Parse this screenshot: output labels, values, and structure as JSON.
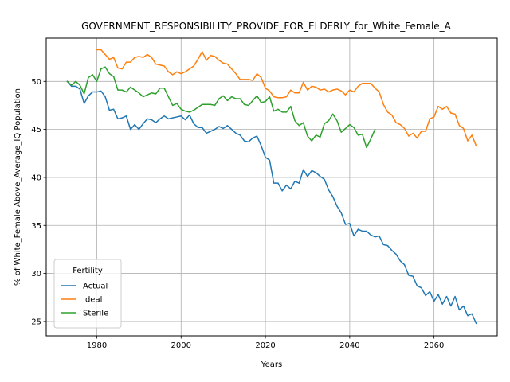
{
  "chart_data": {
    "type": "line",
    "title": "GOVERNMENT_RESPONSIBILITY_PROVIDE_FOR_ELDERLY_for_White_Female_A",
    "xlabel": "Years",
    "ylabel": "% of White_Female Above_Average_IQ Population",
    "xlim": [
      1968,
      2075
    ],
    "ylim": [
      23.5,
      54.5
    ],
    "xticks": [
      1980,
      2000,
      2020,
      2040,
      2060
    ],
    "yticks": [
      25,
      30,
      35,
      40,
      45,
      50
    ],
    "grid": true,
    "legend": {
      "title": "Fertility",
      "position": "lower left"
    },
    "series": [
      {
        "name": "Actual",
        "color": "#1f77b4",
        "x": [
          1973,
          1974,
          1975,
          1976,
          1977,
          1978,
          1979,
          1980,
          1981,
          1982,
          1983,
          1984,
          1985,
          1986,
          1987,
          1988,
          1989,
          1990,
          1991,
          1992,
          1993,
          1994,
          1995,
          1996,
          1997,
          1998,
          1999,
          2000,
          2001,
          2002,
          2003,
          2004,
          2005,
          2006,
          2007,
          2008,
          2009,
          2010,
          2011,
          2012,
          2013,
          2014,
          2015,
          2016,
          2017,
          2018,
          2019,
          2020,
          2021,
          2022,
          2023,
          2024,
          2025,
          2026,
          2027,
          2028,
          2029,
          2030,
          2031,
          2032,
          2033,
          2034,
          2035,
          2036,
          2037,
          2038,
          2039,
          2040,
          2041,
          2042,
          2043,
          2044,
          2045,
          2046,
          2047,
          2048,
          2049,
          2050,
          2051,
          2052,
          2053,
          2054,
          2055,
          2056,
          2057,
          2058,
          2059,
          2060,
          2061,
          2062,
          2063,
          2064,
          2065,
          2066,
          2067,
          2068,
          2069,
          2070
        ],
        "y": [
          50.0,
          49.5,
          49.5,
          49.2,
          47.7,
          48.5,
          48.9,
          48.9,
          49.0,
          48.4,
          47.0,
          47.1,
          46.1,
          46.2,
          46.4,
          45.0,
          45.5,
          45.0,
          45.6,
          46.1,
          46.0,
          45.7,
          46.1,
          46.4,
          46.1,
          46.2,
          46.3,
          46.4,
          46.0,
          46.5,
          45.6,
          45.2,
          45.2,
          44.6,
          44.8,
          45.0,
          45.3,
          45.1,
          45.4,
          45.0,
          44.6,
          44.4,
          43.8,
          43.7,
          44.1,
          44.3,
          43.3,
          42.1,
          41.8,
          39.4,
          39.4,
          38.6,
          39.2,
          38.8,
          39.6,
          39.4,
          40.8,
          40.1,
          40.7,
          40.5,
          40.1,
          39.8,
          38.7,
          38.0,
          37.0,
          36.3,
          35.1,
          35.2,
          33.9,
          34.6,
          34.4,
          34.4,
          34.0,
          33.8,
          33.9,
          33.0,
          32.9,
          32.4,
          32.0,
          31.3,
          30.9,
          29.8,
          29.7,
          28.7,
          28.5,
          27.7,
          28.1,
          27.1,
          27.8,
          26.8,
          27.6,
          26.6,
          27.6,
          26.2,
          26.6,
          25.6,
          25.8,
          24.8
        ]
      },
      {
        "name": "Ideal",
        "color": "#ff7f0e",
        "x": [
          1980,
          1981,
          1982,
          1983,
          1984,
          1985,
          1986,
          1987,
          1988,
          1989,
          1990,
          1991,
          1992,
          1993,
          1994,
          1995,
          1996,
          1997,
          1998,
          1999,
          2000,
          2001,
          2002,
          2003,
          2004,
          2005,
          2006,
          2007,
          2008,
          2009,
          2010,
          2011,
          2012,
          2013,
          2014,
          2015,
          2016,
          2017,
          2018,
          2019,
          2020,
          2021,
          2022,
          2023,
          2024,
          2025,
          2026,
          2027,
          2028,
          2029,
          2030,
          2031,
          2032,
          2033,
          2034,
          2035,
          2036,
          2037,
          2038,
          2039,
          2040,
          2041,
          2042,
          2043,
          2044,
          2045,
          2046,
          2047,
          2048,
          2049,
          2050,
          2051,
          2052,
          2053,
          2054,
          2055,
          2056,
          2057,
          2058,
          2059,
          2060,
          2061,
          2062,
          2063,
          2064,
          2065,
          2066,
          2067,
          2068,
          2069,
          2070
        ],
        "y": [
          53.3,
          53.3,
          52.8,
          52.3,
          52.5,
          51.4,
          51.3,
          52.0,
          52.0,
          52.5,
          52.6,
          52.5,
          52.8,
          52.5,
          51.8,
          51.7,
          51.6,
          51.0,
          50.7,
          51.0,
          50.8,
          51.0,
          51.3,
          51.6,
          52.3,
          53.1,
          52.2,
          52.7,
          52.6,
          52.2,
          51.9,
          51.8,
          51.3,
          50.8,
          50.2,
          50.2,
          50.2,
          50.1,
          50.8,
          50.4,
          49.3,
          49.0,
          48.4,
          48.3,
          48.3,
          48.4,
          49.1,
          48.8,
          48.8,
          49.9,
          49.1,
          49.5,
          49.4,
          49.1,
          49.2,
          48.9,
          49.1,
          49.2,
          49.0,
          48.6,
          49.1,
          48.9,
          49.5,
          49.8,
          49.8,
          49.8,
          49.3,
          48.9,
          47.6,
          46.8,
          46.5,
          45.7,
          45.5,
          45.1,
          44.3,
          44.6,
          44.1,
          44.8,
          44.8,
          46.1,
          46.3,
          47.4,
          47.1,
          47.4,
          46.7,
          46.6,
          45.4,
          45.1,
          43.8,
          44.4,
          43.3
        ]
      },
      {
        "name": "Sterile",
        "color": "#2ca02c",
        "x": [
          1973,
          1974,
          1975,
          1976,
          1977,
          1978,
          1979,
          1980,
          1981,
          1982,
          1983,
          1984,
          1985,
          1986,
          1987,
          1988,
          1989,
          1990,
          1991,
          1992,
          1993,
          1994,
          1995,
          1996,
          1997,
          1998,
          1999,
          2000,
          2001,
          2002,
          2003,
          2004,
          2005,
          2006,
          2007,
          2008,
          2009,
          2010,
          2011,
          2012,
          2013,
          2014,
          2015,
          2016,
          2017,
          2018,
          2019,
          2020,
          2021,
          2022,
          2023,
          2024,
          2025,
          2026,
          2027,
          2028,
          2029,
          2030,
          2031,
          2032,
          2033,
          2034,
          2035,
          2036,
          2037,
          2038,
          2039,
          2040,
          2041,
          2042,
          2043,
          2044,
          2045,
          2046
        ],
        "y": [
          50.0,
          49.6,
          50.0,
          49.6,
          48.7,
          50.4,
          50.7,
          50.0,
          51.3,
          51.5,
          50.8,
          50.5,
          49.1,
          49.1,
          48.9,
          49.4,
          49.1,
          48.8,
          48.4,
          48.6,
          48.8,
          48.7,
          49.3,
          49.3,
          48.4,
          47.5,
          47.7,
          47.1,
          46.9,
          46.8,
          47.0,
          47.3,
          47.6,
          47.6,
          47.6,
          47.5,
          48.2,
          48.5,
          48.0,
          48.4,
          48.2,
          48.2,
          47.6,
          47.5,
          48.0,
          48.5,
          47.8,
          47.9,
          48.4,
          46.9,
          47.1,
          46.8,
          46.8,
          47.4,
          45.9,
          45.4,
          45.7,
          44.3,
          43.8,
          44.4,
          44.2,
          45.6,
          45.9,
          46.6,
          45.9,
          44.7,
          45.1,
          45.5,
          45.2,
          44.4,
          44.5,
          43.1,
          44.0,
          45.0
        ]
      }
    ]
  }
}
